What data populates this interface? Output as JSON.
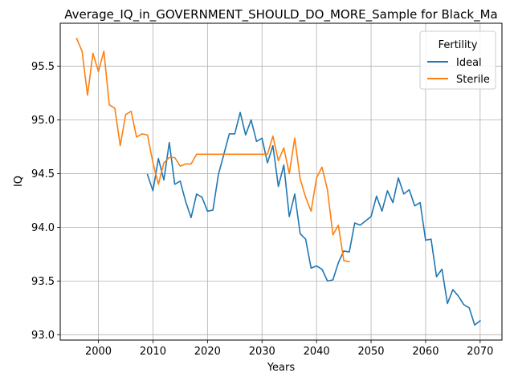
{
  "chart_data": {
    "type": "line",
    "title": "Average_IQ_in_GOVERNMENT_SHOULD_DO_MORE_Sample for Black_Ma",
    "xlabel": "Years",
    "ylabel": "IQ",
    "xlim": [
      1993,
      2074
    ],
    "ylim": [
      92.95,
      95.9
    ],
    "x_ticks": [
      2000,
      2010,
      2020,
      2030,
      2040,
      2050,
      2060,
      2070
    ],
    "x_tick_labels": [
      "2000",
      "2010",
      "2020",
      "2030",
      "2040",
      "2050",
      "2060",
      "2070"
    ],
    "y_ticks": [
      93.0,
      93.5,
      94.0,
      94.5,
      95.0,
      95.5
    ],
    "y_tick_labels": [
      "93.0",
      "93.5",
      "94.0",
      "94.5",
      "95.0",
      "95.5"
    ],
    "grid": true,
    "legend": {
      "title": "Fertility",
      "position": "top-right"
    },
    "series": [
      {
        "name": "Ideal",
        "color": "#1f77b4",
        "x": [
          2009,
          2010,
          2011,
          2012,
          2013,
          2014,
          2015,
          2016,
          2017,
          2018,
          2019,
          2020,
          2021,
          2022,
          2023,
          2024,
          2025,
          2026,
          2027,
          2028,
          2029,
          2030,
          2031,
          2032,
          2033,
          2034,
          2035,
          2036,
          2037,
          2038,
          2039,
          2040,
          2041,
          2042,
          2043,
          2044,
          2045,
          2046,
          2047,
          2048,
          2049,
          2050,
          2051,
          2052,
          2053,
          2054,
          2055,
          2056,
          2057,
          2058,
          2059,
          2060,
          2061,
          2062,
          2063,
          2064,
          2065,
          2066,
          2067,
          2068,
          2069,
          2070
        ],
        "y": [
          94.49,
          94.34,
          94.64,
          94.44,
          94.79,
          94.4,
          94.43,
          94.24,
          94.09,
          94.31,
          94.28,
          94.15,
          94.16,
          94.49,
          94.68,
          94.87,
          94.87,
          95.07,
          94.86,
          95.0,
          94.8,
          94.83,
          94.6,
          94.76,
          94.38,
          94.58,
          94.1,
          94.31,
          93.94,
          93.89,
          93.62,
          93.64,
          93.61,
          93.5,
          93.51,
          93.67,
          93.78,
          93.77,
          94.04,
          94.02,
          94.06,
          94.1,
          94.29,
          94.15,
          94.34,
          94.23,
          94.46,
          94.31,
          94.35,
          94.2,
          94.23,
          93.88,
          93.89,
          93.54,
          93.61,
          93.29,
          93.42,
          93.36,
          93.28,
          93.25,
          93.09,
          93.13
        ]
      },
      {
        "name": "Sterile",
        "color": "#ff7f0e",
        "x": [
          1996,
          1997,
          1998,
          1999,
          2000,
          2001,
          2002,
          2003,
          2004,
          2005,
          2006,
          2007,
          2008,
          2009,
          2010,
          2011,
          2012,
          2013,
          2014,
          2015,
          2016,
          2017,
          2018,
          2019,
          2020,
          2021,
          2022,
          2023,
          2024,
          2025,
          2026,
          2027,
          2028,
          2029,
          2030,
          2031,
          2032,
          2033,
          2034,
          2035,
          2036,
          2037,
          2038,
          2039,
          2040,
          2041,
          2042,
          2043,
          2044,
          2045,
          2046
        ],
        "y": [
          95.76,
          95.64,
          95.23,
          95.62,
          95.45,
          95.64,
          95.14,
          95.11,
          94.76,
          95.05,
          95.08,
          94.84,
          94.87,
          94.86,
          94.6,
          94.4,
          94.6,
          94.65,
          94.65,
          94.57,
          94.59,
          94.59,
          94.68,
          94.68,
          94.68,
          94.68,
          94.68,
          94.68,
          94.68,
          94.68,
          94.68,
          94.68,
          94.68,
          94.68,
          94.68,
          94.68,
          94.85,
          94.62,
          94.74,
          94.5,
          94.83,
          94.45,
          94.28,
          94.15,
          94.46,
          94.56,
          94.35,
          93.93,
          94.02,
          93.69,
          93.68
        ]
      }
    ]
  }
}
